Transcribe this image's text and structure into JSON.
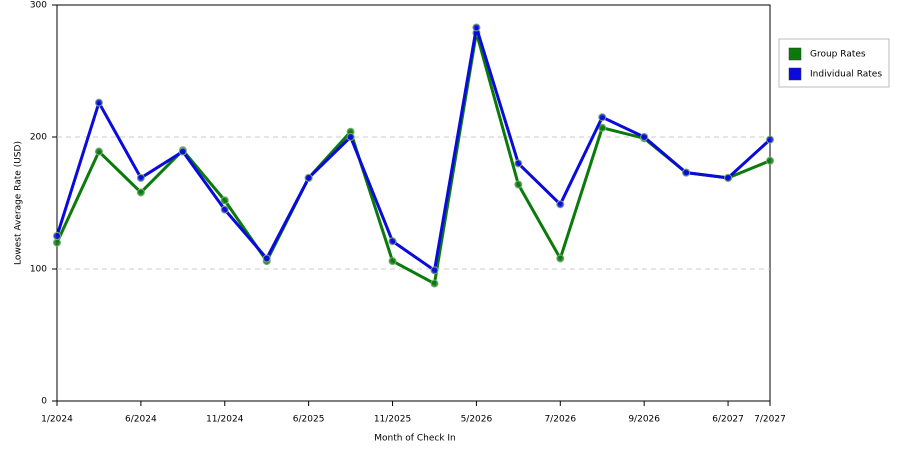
{
  "chart_data": {
    "type": "line",
    "x_label": "Month of Check In",
    "y_label": "Lowest Average Rate (USD)",
    "categories": [
      "1/2024",
      null,
      "6/2024",
      null,
      "11/2024",
      null,
      "6/2025",
      null,
      "11/2025",
      null,
      "5/2026",
      null,
      "7/2026",
      null,
      "9/2026",
      null,
      "6/2027",
      "7/2027"
    ],
    "series": [
      {
        "name": "Group Rates",
        "color": "#0a7a0a",
        "values": [
          120,
          189,
          158,
          190,
          152,
          106,
          169,
          204,
          106,
          89,
          279,
          164,
          108,
          207,
          199,
          173,
          169,
          182
        ]
      },
      {
        "name": "Individual Rates",
        "color": "#0a0adc",
        "values": [
          125,
          226,
          169,
          189,
          145,
          108,
          169,
          200,
          121,
          99,
          283,
          180,
          149,
          215,
          200,
          173,
          169,
          198
        ]
      }
    ],
    "ylim": [
      0,
      300
    ],
    "yticks": [
      0,
      100,
      200,
      300
    ],
    "grid": true,
    "legend": "right"
  }
}
